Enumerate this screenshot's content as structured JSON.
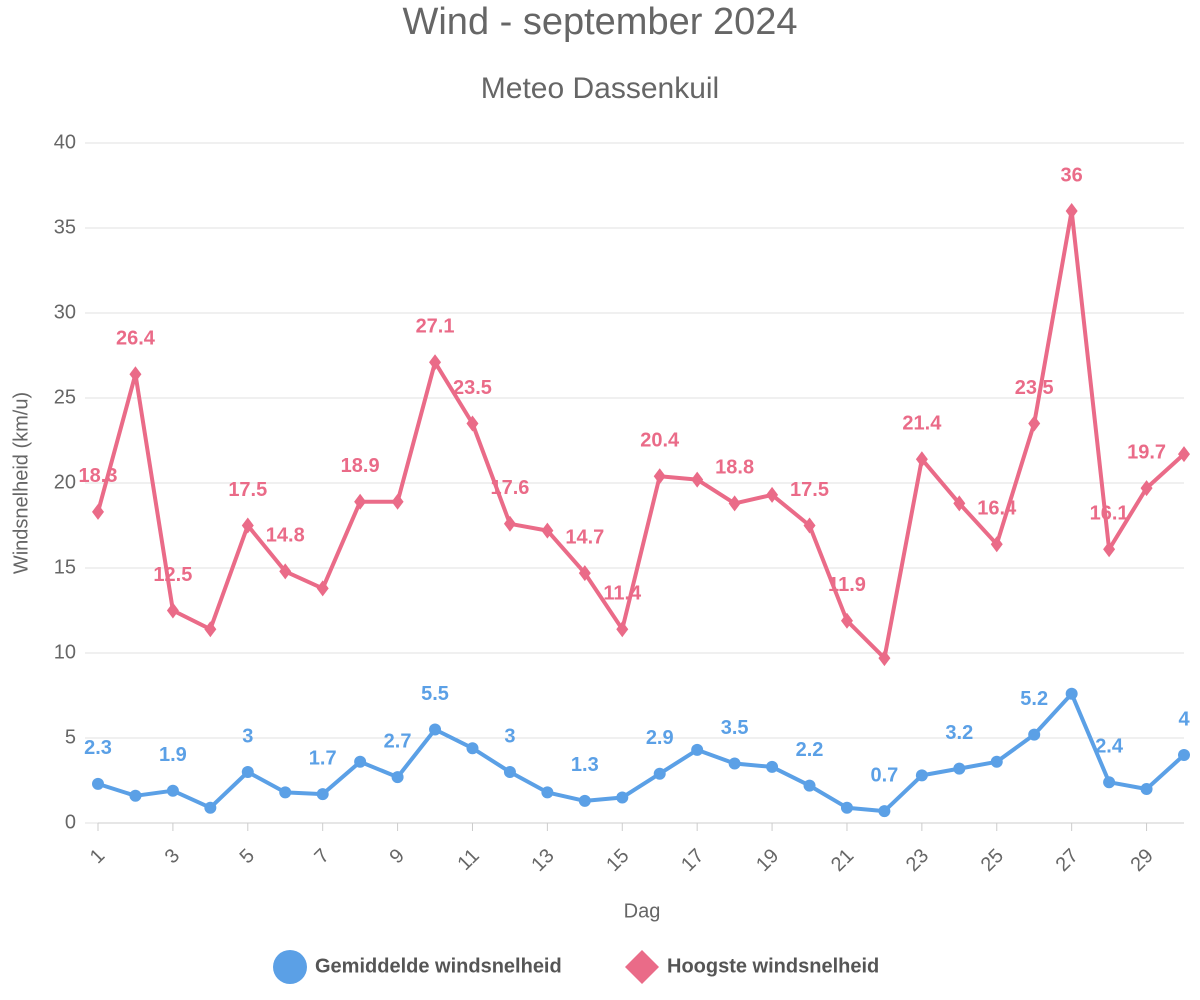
{
  "chart_data": {
    "type": "line",
    "title": "Wind - september 2024",
    "subtitle": "Meteo Dassenkuil",
    "x_label": "Dag",
    "y_label": "Windsnelheid (km/u)",
    "x": [
      1,
      2,
      3,
      4,
      5,
      6,
      7,
      8,
      9,
      10,
      11,
      12,
      13,
      14,
      15,
      16,
      17,
      18,
      19,
      20,
      21,
      22,
      23,
      24,
      25,
      26,
      27,
      28,
      29,
      30
    ],
    "xlim": [
      1,
      30
    ],
    "xticks": [
      1,
      3,
      5,
      7,
      9,
      11,
      13,
      15,
      17,
      19,
      21,
      23,
      25,
      27,
      29
    ],
    "ylim": [
      0,
      40
    ],
    "yticks": [
      0,
      5,
      10,
      15,
      20,
      25,
      30,
      35,
      40
    ],
    "grid": true,
    "legend": "bottom",
    "series": [
      {
        "name": "Gemiddelde windsnelheid",
        "color": "#5ba0e6",
        "marker": "circle",
        "values": [
          2.3,
          1.6,
          1.9,
          0.9,
          3,
          1.8,
          1.7,
          3.6,
          2.7,
          5.5,
          4.4,
          3,
          1.8,
          1.3,
          1.5,
          2.9,
          4.3,
          3.5,
          3.3,
          2.2,
          0.9,
          0.7,
          2.8,
          3.2,
          3.6,
          5.2,
          7.6,
          2.4,
          2.0,
          4
        ],
        "value_labels": [
          "2.3",
          null,
          "1.9",
          null,
          "3",
          null,
          "1.7",
          null,
          "2.7",
          "5.5",
          null,
          "3",
          null,
          "1.3",
          null,
          "2.9",
          null,
          "3.5",
          null,
          "2.2",
          null,
          "0.7",
          null,
          "3.2",
          null,
          "5.2",
          null,
          "2.4",
          null,
          "4"
        ]
      },
      {
        "name": "Hoogste windsnelheid",
        "color": "#ea6b88",
        "marker": "diamond",
        "values": [
          18.3,
          26.4,
          12.5,
          11.4,
          17.5,
          14.8,
          13.8,
          18.9,
          18.9,
          27.1,
          23.5,
          17.6,
          17.2,
          14.7,
          11.4,
          20.4,
          20.2,
          18.8,
          19.3,
          17.5,
          11.9,
          9.7,
          21.4,
          18.8,
          16.4,
          23.5,
          36,
          16.1,
          19.7,
          21.7
        ],
        "value_labels": [
          "18.3",
          "26.4",
          "12.5",
          null,
          "17.5",
          "14.8",
          null,
          "18.9",
          null,
          "27.1",
          "23.5",
          "17.6",
          null,
          "14.7",
          "11.4",
          "20.4",
          null,
          "18.8",
          null,
          "17.5",
          "11.9",
          null,
          "21.4",
          null,
          "16.4",
          "23.5",
          "36",
          "16.1",
          "19.7",
          null
        ]
      }
    ]
  }
}
